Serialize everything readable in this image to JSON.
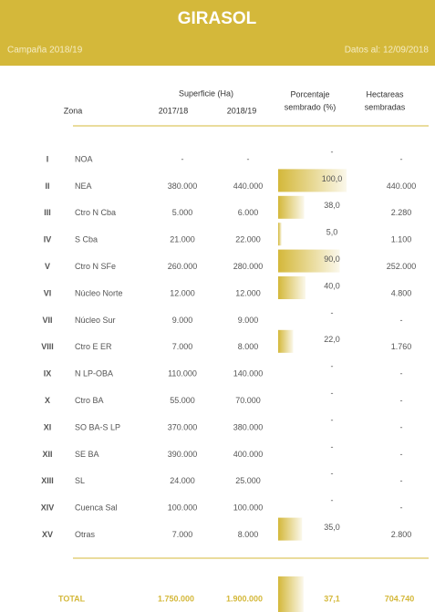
{
  "header": {
    "title": "GIRASOL",
    "campaign": "Campaña 2018/19",
    "date": "Datos al: 12/09/2018"
  },
  "table": {
    "columns": {
      "superficie": "Superficie (Ha)",
      "zona": "Zona",
      "y1": "2017/18",
      "y2": "2018/19",
      "pct": [
        "Porcentaje",
        "sembrado (%)"
      ],
      "ha": [
        "Hectareas",
        "sembradas"
      ]
    },
    "rows": [
      {
        "num": "I",
        "zona": "NOA",
        "s1": "-",
        "s2": "-",
        "pct": null,
        "pct_label": "-",
        "ha": "-"
      },
      {
        "num": "II",
        "zona": "NEA",
        "s1": "380.000",
        "s2": "440.000",
        "pct": 100,
        "pct_label": "100,0",
        "ha": "440.000"
      },
      {
        "num": "III",
        "zona": "Ctro N Cba",
        "s1": "5.000",
        "s2": "6.000",
        "pct": 38,
        "pct_label": "38,0",
        "ha": "2.280"
      },
      {
        "num": "IV",
        "zona": "S Cba",
        "s1": "21.000",
        "s2": "22.000",
        "pct": 5,
        "pct_label": "5,0",
        "ha": "1.100"
      },
      {
        "num": "V",
        "zona": "Ctro N SFe",
        "s1": "260.000",
        "s2": "280.000",
        "pct": 90,
        "pct_label": "90,0",
        "ha": "252.000"
      },
      {
        "num": "VI",
        "zona": "Núcleo Norte",
        "s1": "12.000",
        "s2": "12.000",
        "pct": 40,
        "pct_label": "40,0",
        "ha": "4.800"
      },
      {
        "num": "VII",
        "zona": "Núcleo Sur",
        "s1": "9.000",
        "s2": "9.000",
        "pct": null,
        "pct_label": "-",
        "ha": "-"
      },
      {
        "num": "VIII",
        "zona": "Ctro E ER",
        "s1": "7.000",
        "s2": "8.000",
        "pct": 22,
        "pct_label": "22,0",
        "ha": "1.760"
      },
      {
        "num": "IX",
        "zona": "N LP-OBA",
        "s1": "110.000",
        "s2": "140.000",
        "pct": null,
        "pct_label": "-",
        "ha": "-"
      },
      {
        "num": "X",
        "zona": "Ctro BA",
        "s1": "55.000",
        "s2": "70.000",
        "pct": null,
        "pct_label": "-",
        "ha": "-"
      },
      {
        "num": "XI",
        "zona": "SO BA-S LP",
        "s1": "370.000",
        "s2": "380.000",
        "pct": null,
        "pct_label": "-",
        "ha": "-"
      },
      {
        "num": "XII",
        "zona": "SE BA",
        "s1": "390.000",
        "s2": "400.000",
        "pct": null,
        "pct_label": "-",
        "ha": "-"
      },
      {
        "num": "XIII",
        "zona": "SL",
        "s1": "24.000",
        "s2": "25.000",
        "pct": null,
        "pct_label": "-",
        "ha": "-"
      },
      {
        "num": "XIV",
        "zona": "Cuenca Sal",
        "s1": "100.000",
        "s2": "100.000",
        "pct": null,
        "pct_label": "-",
        "ha": "-"
      },
      {
        "num": "XV",
        "zona": "Otras",
        "s1": "7.000",
        "s2": "8.000",
        "pct": 35,
        "pct_label": "35,0",
        "ha": "2.800"
      }
    ],
    "total": {
      "label": "TOTAL",
      "s1": "1.750.000",
      "s2": "1.900.000",
      "pct": 37.1,
      "pct_label": "37,1",
      "ha": "704.740"
    }
  }
}
